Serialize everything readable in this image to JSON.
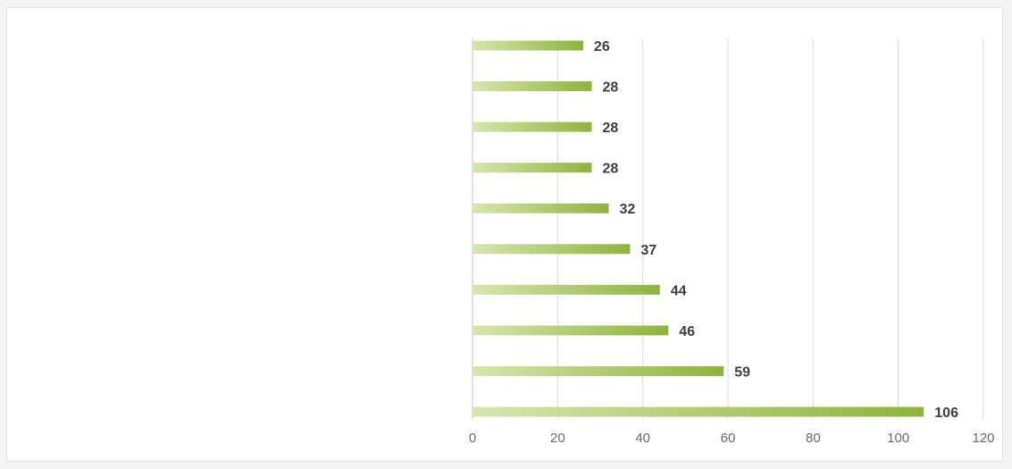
{
  "chart_data": {
    "type": "bar",
    "orientation": "horizontal",
    "categories": [
      "",
      "",
      "",
      "",
      "",
      "",
      "",
      "",
      "",
      ""
    ],
    "values": [
      26,
      28,
      28,
      28,
      32,
      37,
      44,
      46,
      59,
      106
    ],
    "data_labels": [
      "26",
      "28",
      "28",
      "28",
      "32",
      "37",
      "44",
      "46",
      "59",
      "106"
    ],
    "xlim": [
      0,
      120
    ],
    "x_ticks": [
      "0",
      "20",
      "40",
      "60",
      "80",
      "100",
      "120"
    ],
    "grid": "vertical",
    "legend": "none",
    "colors": {
      "bar_light": "#d7e6ad",
      "bar_dark": "#8cb43c",
      "grid": "#d9d9d9",
      "axis": "#bfbfbf"
    }
  }
}
